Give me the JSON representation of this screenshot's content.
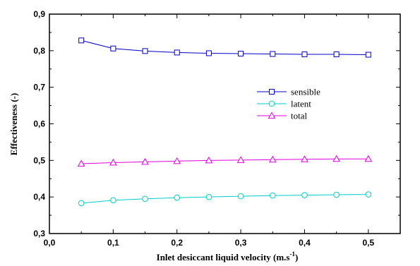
{
  "chart_data": {
    "type": "line",
    "xlabel": "Inlet desiccant liquid velocity (m.s",
    "xlabel_sup": "-1",
    "xlabel_end": ")",
    "ylabel": "Effectiveness (-)",
    "xlim": [
      0.0,
      0.55
    ],
    "ylim": [
      0.3,
      0.9
    ],
    "x_ticks": [
      "0,0",
      "0,1",
      "0,2",
      "0,3",
      "0,4",
      "0,5"
    ],
    "y_ticks": [
      "0,3",
      "0,4",
      "0,5",
      "0,6",
      "0,7",
      "0,8",
      "0,9"
    ],
    "grid": false,
    "legend_position": "right-middle",
    "x": [
      0.05,
      0.1,
      0.15,
      0.2,
      0.25,
      0.3,
      0.35,
      0.4,
      0.45,
      0.5
    ],
    "series": [
      {
        "name": "sensible",
        "marker": "square",
        "color": "#0000CC",
        "values": [
          0.828,
          0.806,
          0.799,
          0.795,
          0.793,
          0.792,
          0.791,
          0.79,
          0.79,
          0.789
        ]
      },
      {
        "name": "latent",
        "marker": "circle",
        "color": "#00CCCC",
        "values": [
          0.383,
          0.391,
          0.395,
          0.398,
          0.4,
          0.402,
          0.404,
          0.405,
          0.406,
          0.407
        ]
      },
      {
        "name": "total",
        "marker": "triangle",
        "color": "#E000E0",
        "values": [
          0.491,
          0.494,
          0.496,
          0.498,
          0.5,
          0.501,
          0.502,
          0.503,
          0.504,
          0.504
        ]
      }
    ]
  }
}
